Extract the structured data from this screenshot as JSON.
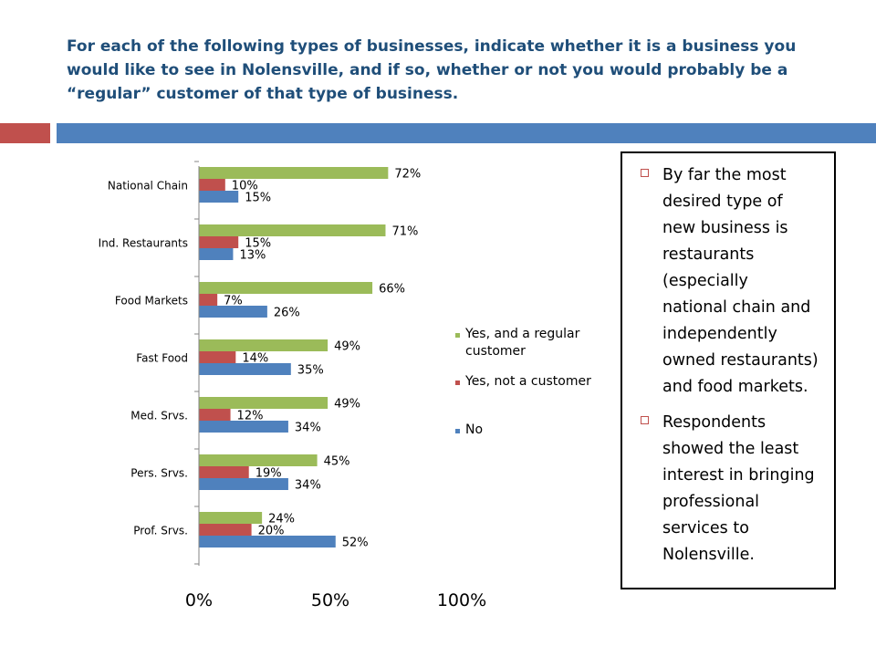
{
  "slide": {
    "title": "For each of the following types of businesses, indicate whether it is a business you would like to see in Nolensville, and if so, whether or not you would probably be a “regular” customer of that type of business."
  },
  "bullets": [
    {
      "lines": [
        "By far the most",
        "desired type of",
        "new business is",
        "restaurants",
        "(especially",
        "national chain and",
        "independently",
        "owned restaurants)",
        "and food markets."
      ]
    },
    {
      "lines": [
        "Respondents",
        "showed the least",
        "interest in bringing",
        "professional",
        "services to",
        "Nolensville."
      ]
    }
  ],
  "chart_data": {
    "type": "bar",
    "orientation": "horizontal",
    "categories": [
      "National Chain",
      "Ind. Restaurants",
      "Food Markets",
      "Fast Food",
      "Med. Srvs.",
      "Pers. Srvs.",
      "Prof. Srvs."
    ],
    "series": [
      {
        "name": "Yes, and a regular customer",
        "color": "#9bbb59",
        "values": [
          72,
          71,
          66,
          49,
          49,
          45,
          24
        ]
      },
      {
        "name": "Yes, not a customer",
        "color": "#c0504d",
        "values": [
          10,
          15,
          7,
          14,
          12,
          19,
          20
        ]
      },
      {
        "name": "No",
        "color": "#4f81bd",
        "values": [
          15,
          13,
          26,
          35,
          34,
          34,
          52
        ]
      }
    ],
    "data_labels": [
      [
        "72%",
        "71%",
        "66%",
        "49%",
        "49%",
        "45%",
        "24%"
      ],
      [
        "10%",
        "15%",
        "7%",
        "14%",
        "12%",
        "19%",
        "20%"
      ],
      [
        "15%",
        "13%",
        "26%",
        "35%",
        "34%",
        "34%",
        "52%"
      ]
    ],
    "x_ticks": [
      0,
      50,
      100
    ],
    "x_tick_labels": [
      "0%",
      "50%",
      "100%"
    ],
    "xlim": [
      0,
      100
    ],
    "legend_position": "right",
    "grid": false
  }
}
